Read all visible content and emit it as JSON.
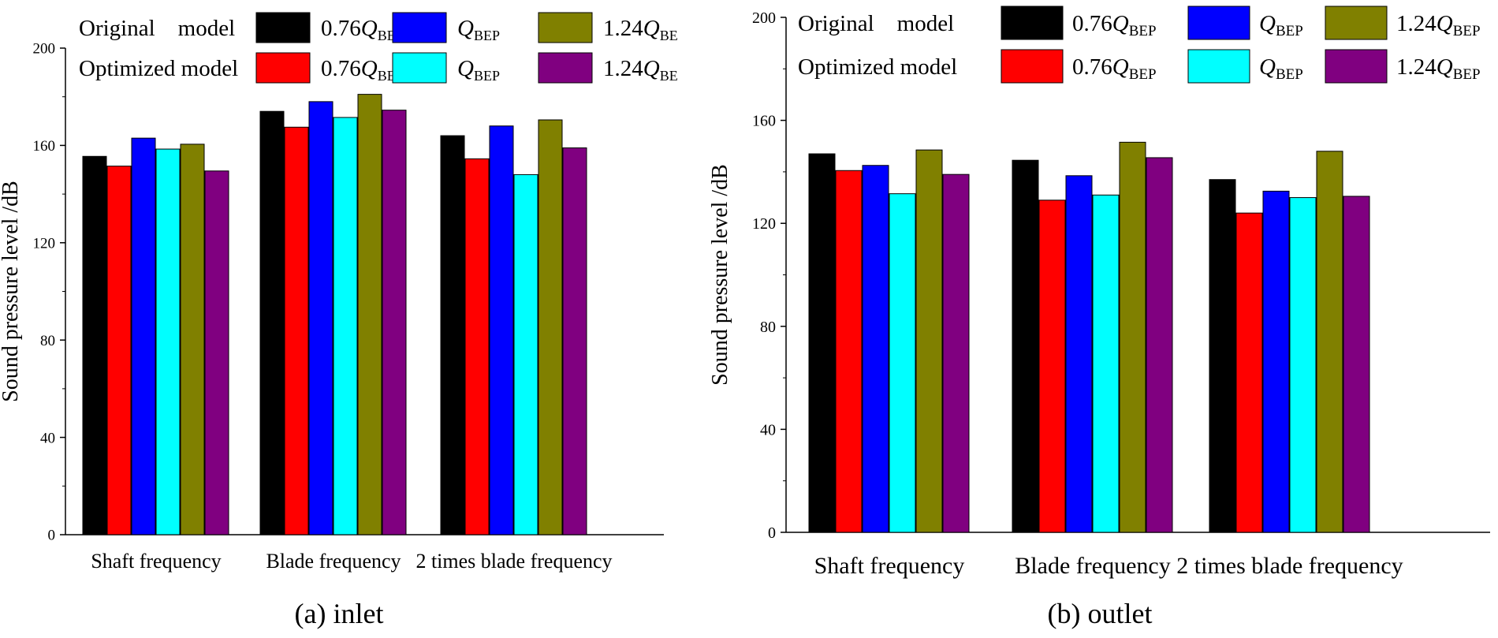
{
  "legend": {
    "original_label": "Original    model",
    "optimized_label": "Optimized model",
    "q_symbol": "Q",
    "q_subscript": "BEP",
    "factors": [
      "0.76",
      "",
      "1.24"
    ]
  },
  "colors": {
    "original": [
      "#000000",
      "#0000FF",
      "#808000"
    ],
    "optimized": [
      "#FF0000",
      "#00FFFF",
      "#800080"
    ]
  },
  "chart_data": [
    {
      "type": "bar",
      "caption": "(a) inlet",
      "ylabel": "Sound pressure level /dB",
      "ylim": [
        0,
        200
      ],
      "yticks": [
        0,
        40,
        80,
        120,
        160,
        200
      ],
      "categories": [
        "Shaft frequency",
        "Blade frequency",
        "2 times blade frequency"
      ],
      "series": [
        {
          "name": "Original model 0.76Q_BEP",
          "values": [
            155.5,
            174,
            164
          ]
        },
        {
          "name": "Optimized model 0.76Q_BEP",
          "values": [
            151.5,
            167.5,
            154.5
          ]
        },
        {
          "name": "Original model Q_BEP",
          "values": [
            163,
            178,
            168
          ]
        },
        {
          "name": "Optimized model Q_BEP",
          "values": [
            158.5,
            171.5,
            148
          ]
        },
        {
          "name": "Original model 1.24Q_BEP",
          "values": [
            160.5,
            181,
            170.5
          ]
        },
        {
          "name": "Optimized model 1.24Q_BEP",
          "values": [
            149.5,
            174.5,
            159
          ]
        }
      ]
    },
    {
      "type": "bar",
      "caption": "(b) outlet",
      "ylabel": "Sound pressure level /dB",
      "ylim": [
        0,
        200
      ],
      "yticks": [
        0,
        40,
        80,
        120,
        160,
        200
      ],
      "categories": [
        "Shaft frequency",
        "Blade frequency",
        "2 times blade frequency"
      ],
      "series": [
        {
          "name": "Original model 0.76Q_BEP",
          "values": [
            147,
            144.5,
            137
          ]
        },
        {
          "name": "Optimized model 0.76Q_BEP",
          "values": [
            140.5,
            129,
            124
          ]
        },
        {
          "name": "Original model Q_BEP",
          "values": [
            142.5,
            138.5,
            132.5
          ]
        },
        {
          "name": "Optimized model Q_BEP",
          "values": [
            131.5,
            131,
            130
          ]
        },
        {
          "name": "Original model 1.24Q_BEP",
          "values": [
            148.5,
            151.5,
            148
          ]
        },
        {
          "name": "Optimized model 1.24Q_BEP",
          "values": [
            139,
            145.5,
            130.5
          ]
        }
      ]
    }
  ]
}
